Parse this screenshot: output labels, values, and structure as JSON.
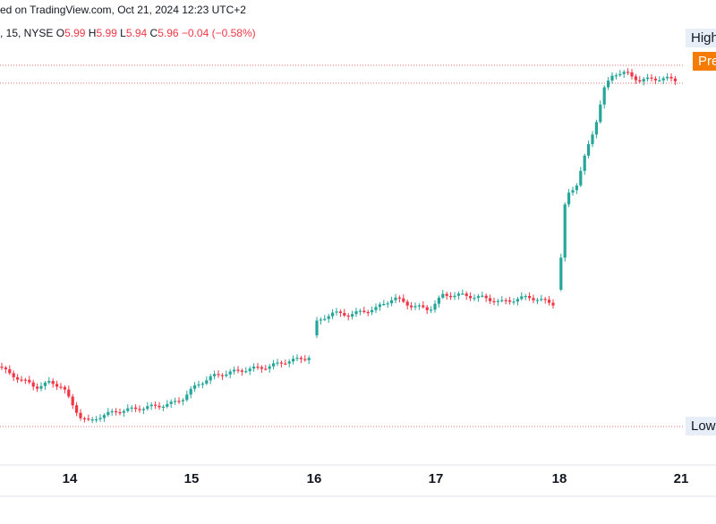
{
  "header": {
    "published": "ed on TradingView.com, Oct 21, 2024 12:23 UTC+2"
  },
  "ohlc": {
    "symbol": ", 15, NYSE",
    "open_label": "O",
    "open": "5.99",
    "high_label": "H",
    "high": "5.99",
    "low_label": "L",
    "low": "5.94",
    "close_label": "C",
    "close": "5.96",
    "change": "−0.04 (−0.58%)"
  },
  "badges": {
    "high": "High",
    "pre": "Pre",
    "low": "Low"
  },
  "colors": {
    "up": "#26a69a",
    "down": "#f23645",
    "pre_badge": "#f57c00",
    "reference_line": "#e57373",
    "axis": "#e0e3eb"
  },
  "chart_data": {
    "type": "candlestick",
    "x_axis_labels": [
      "14",
      "15",
      "16",
      "17",
      "18",
      "21"
    ],
    "grid": false,
    "reference_lines": [
      "High",
      "Pre",
      "Low"
    ],
    "description_free": true
  }
}
